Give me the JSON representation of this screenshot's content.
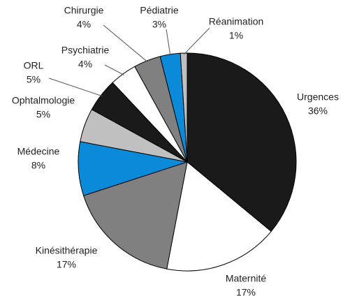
{
  "chart_data": {
    "type": "pie",
    "categories": [
      "Urgences",
      "Maternité",
      "Kinésithérapie",
      "Médecine",
      "Ophtalmologie",
      "ORL",
      "Psychiatrie",
      "Chirurgie",
      "Pédiatrie",
      "Réanimation"
    ],
    "values": [
      36,
      17,
      17,
      8,
      5,
      5,
      4,
      4,
      3,
      1
    ],
    "value_labels": [
      "36%",
      "17%",
      "17%",
      "8%",
      "5%",
      "5%",
      "4%",
      "4%",
      "3%",
      "1%"
    ],
    "colors": [
      "#1a1a1a",
      "#ffffff",
      "#808080",
      "#0a8ad8",
      "#c0c0c0",
      "#1a1a1a",
      "#ffffff",
      "#808080",
      "#0a8ad8",
      "#c0c0c0"
    ]
  }
}
